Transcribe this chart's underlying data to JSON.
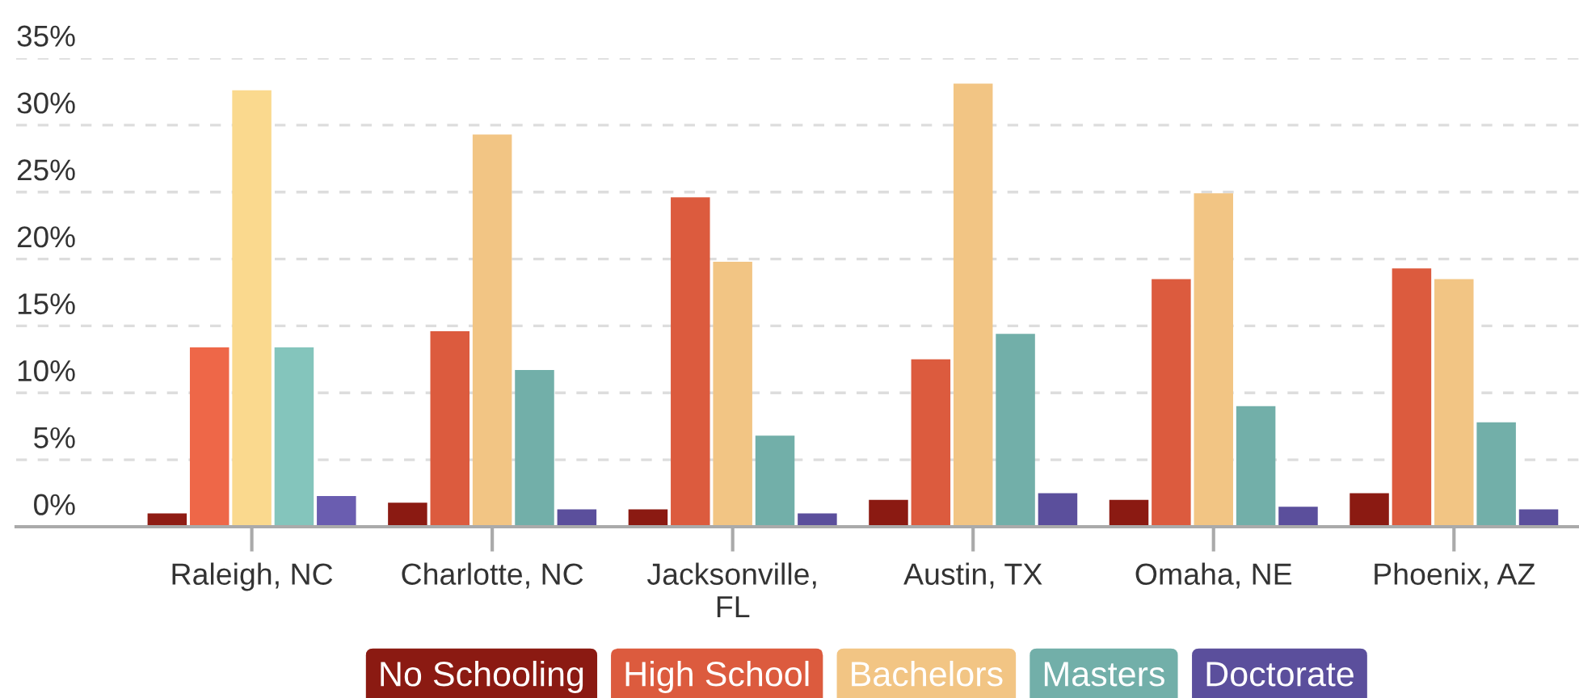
{
  "chart_data": {
    "type": "bar",
    "categories": [
      "Raleigh, NC",
      "Charlotte, NC",
      "Jacksonville, FL",
      "Austin, TX",
      "Omaha, NE",
      "Phoenix, AZ"
    ],
    "series": [
      {
        "name": "No Schooling",
        "color": "#8b1a12",
        "colors": [
          "#8f1c14",
          "#8b1a12",
          "#8b1a12",
          "#8b1a12",
          "#8b1a12",
          "#8b1a12"
        ],
        "values": [
          1.0,
          1.8,
          1.3,
          2.0,
          2.0,
          2.5
        ]
      },
      {
        "name": "High School",
        "color": "#dc5b3e",
        "colors": [
          "#ee6748",
          "#dc5b3e",
          "#dc5b3e",
          "#dc5b3e",
          "#dc5b3e",
          "#dc5b3e"
        ],
        "values": [
          13.4,
          14.6,
          24.6,
          12.5,
          18.5,
          19.3
        ]
      },
      {
        "name": "Bachelors",
        "color": "#f2c584",
        "colors": [
          "#fad98e",
          "#f2c584",
          "#f2c584",
          "#f2c584",
          "#f2c584",
          "#f2c584"
        ],
        "values": [
          32.6,
          29.3,
          19.8,
          33.1,
          24.9,
          18.5
        ]
      },
      {
        "name": "Masters",
        "color": "#72afa9",
        "colors": [
          "#84c5bc",
          "#72afa9",
          "#72afa9",
          "#72afa9",
          "#72afa9",
          "#72afa9"
        ],
        "values": [
          13.4,
          11.7,
          6.8,
          14.4,
          9.0,
          7.8
        ]
      },
      {
        "name": "Doctorate",
        "color": "#5b4f9c",
        "colors": [
          "#6a5db0",
          "#5b4f9c",
          "#5b4f9c",
          "#5b4f9c",
          "#5b4f9c",
          "#5b4f9c"
        ],
        "values": [
          2.3,
          1.3,
          1.0,
          2.5,
          1.5,
          1.3
        ]
      }
    ],
    "ylim": [
      0,
      35
    ],
    "yticks": [
      {
        "value": 0,
        "label": "0%"
      },
      {
        "value": 5,
        "label": "5%"
      },
      {
        "value": 10,
        "label": "10%"
      },
      {
        "value": 15,
        "label": "15%"
      },
      {
        "value": 20,
        "label": "20%"
      },
      {
        "value": 25,
        "label": "25%"
      },
      {
        "value": 30,
        "label": "30%"
      },
      {
        "value": 35,
        "label": "35%"
      }
    ],
    "grid": "y",
    "legend": "bottom"
  }
}
